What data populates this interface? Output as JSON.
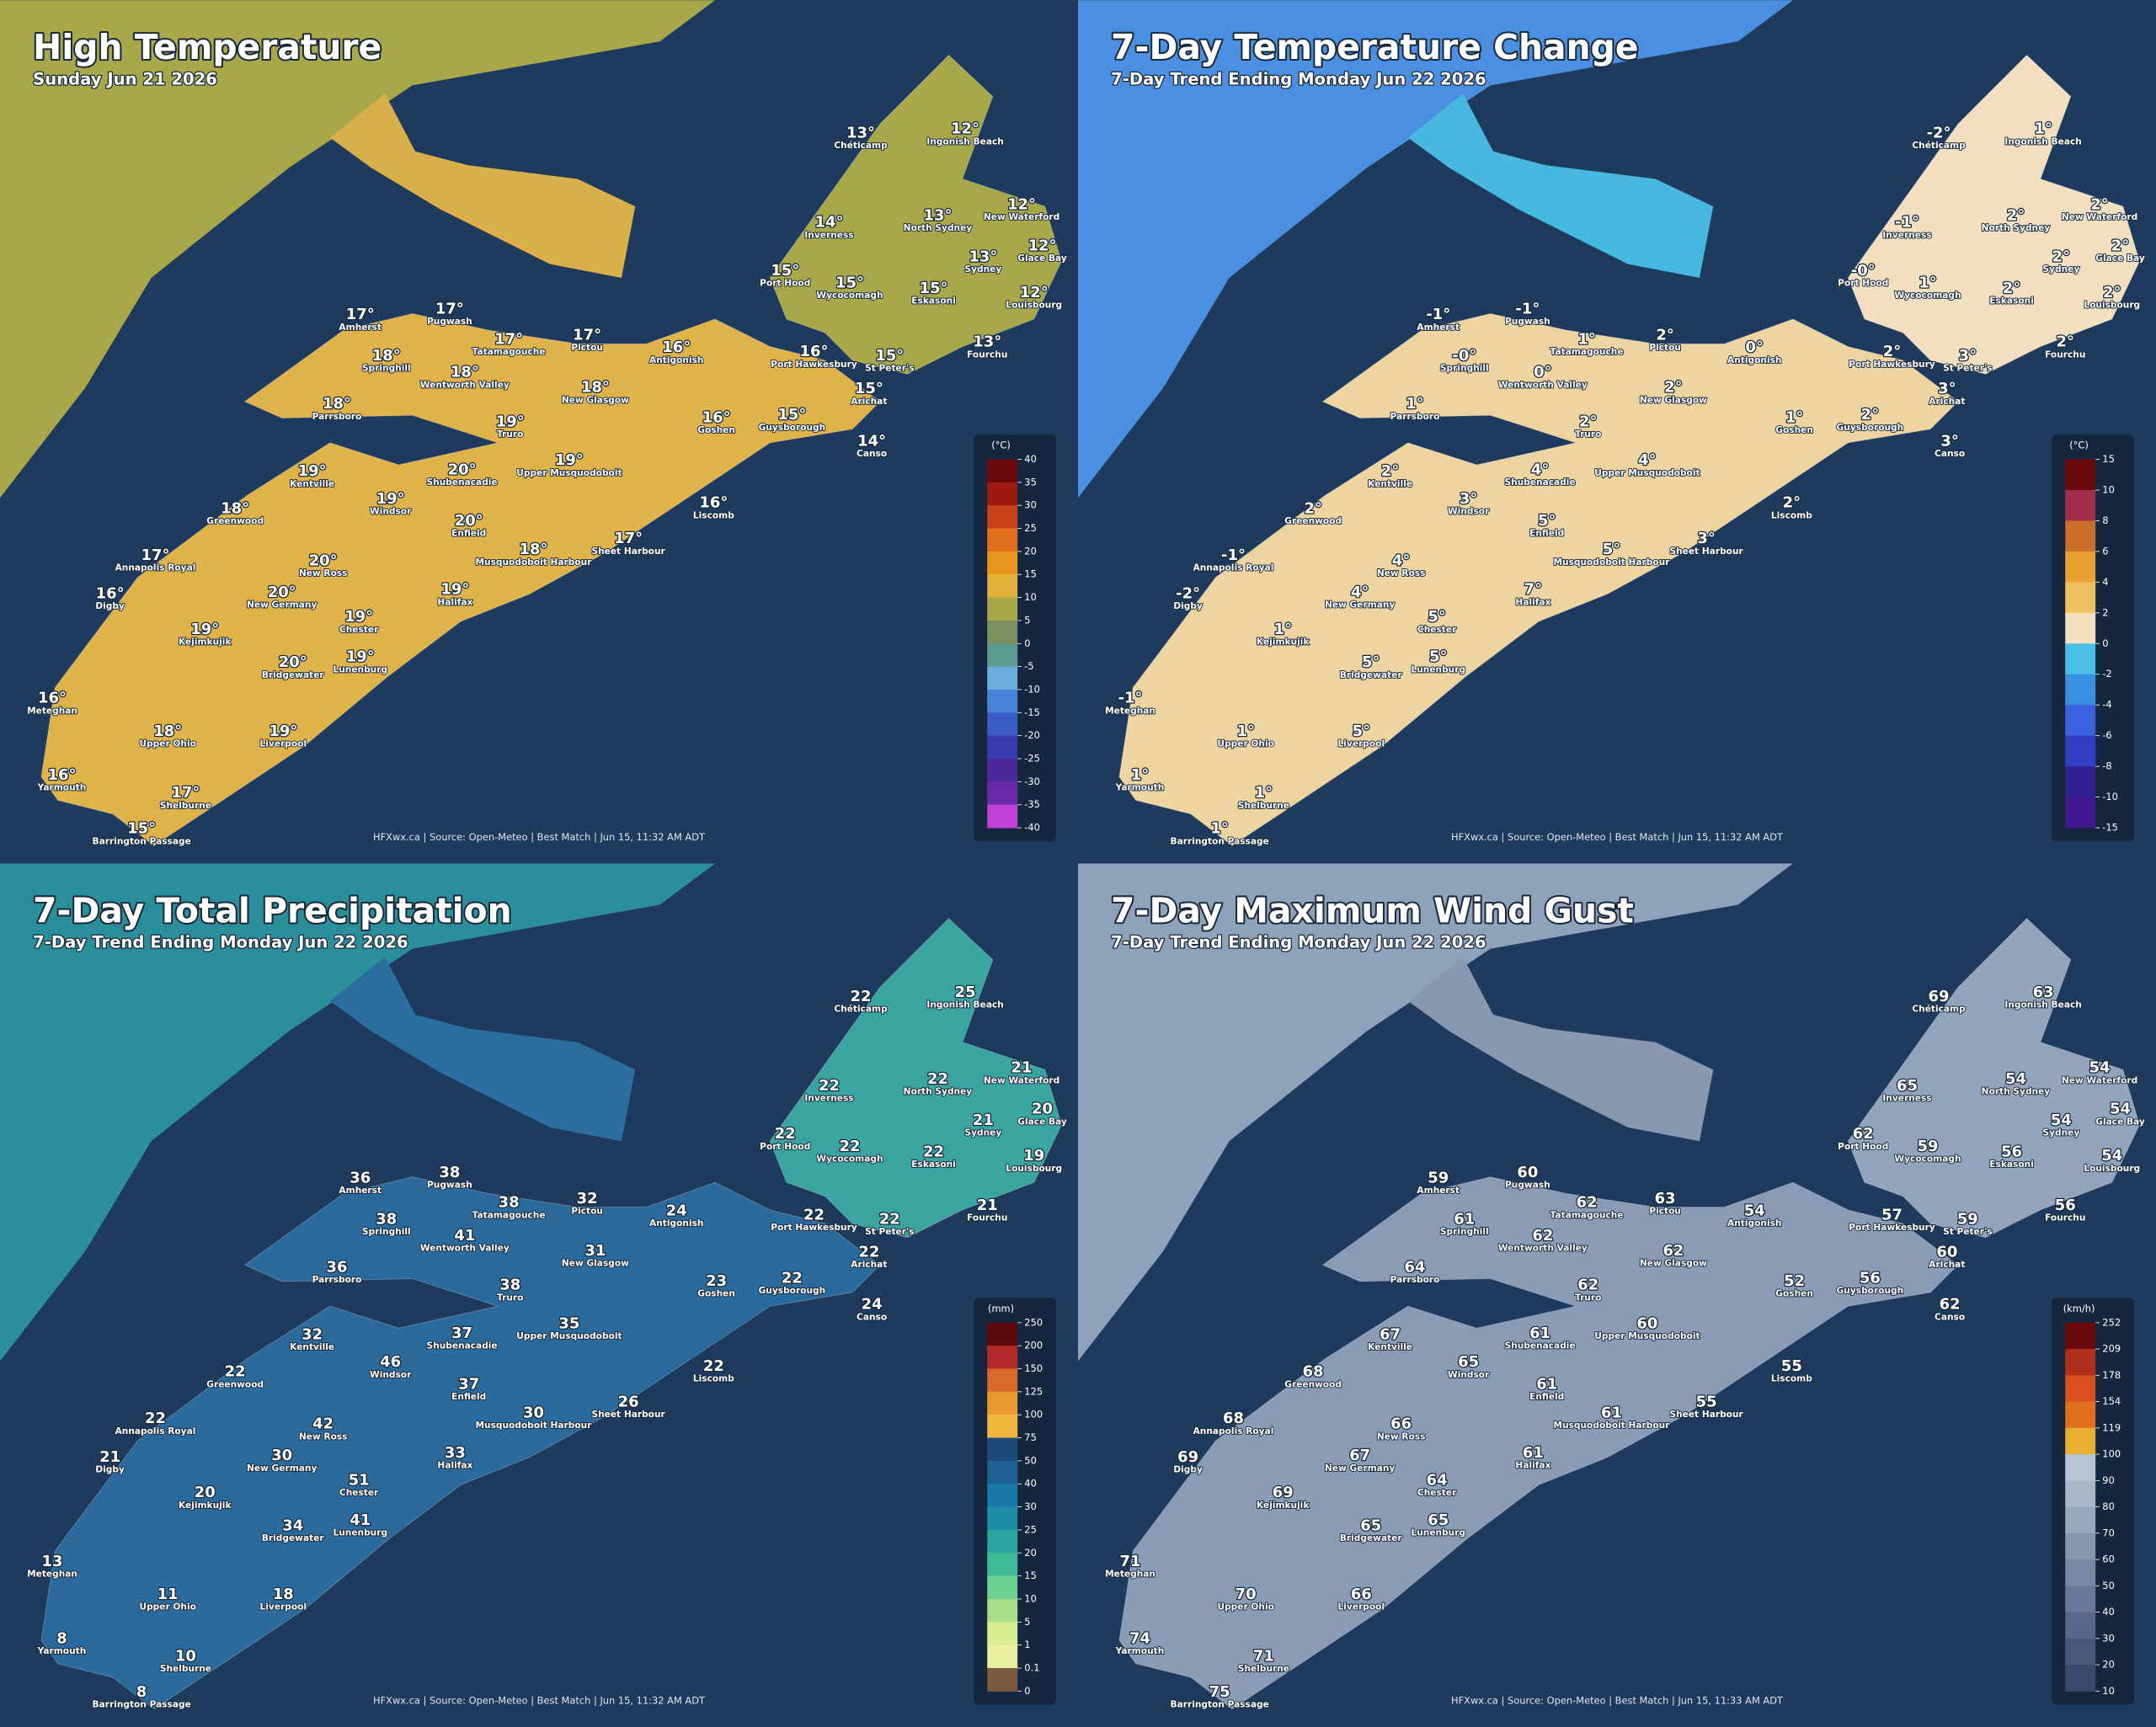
{
  "station_names": [
    "Chéticamp",
    "Ingonish Beach",
    "Inverness",
    "North Sydney",
    "New Waterford",
    "Glace Bay",
    "Sydney",
    "Port Hood",
    "Wycocomagh",
    "Eskasoni",
    "Louisbourg",
    "Amherst",
    "Pugwash",
    "Tatamagouche",
    "Pictou",
    "Antigonish",
    "Port Hawkesbury",
    "St Peter's",
    "Fourchu",
    "Springhill",
    "Wentworth Valley",
    "New Glasgow",
    "Arichat",
    "Parrsboro",
    "Goshen",
    "Guysborough",
    "Truro",
    "Canso",
    "Kentville",
    "Shubenacadie",
    "Upper Musquodoboit",
    "Windsor",
    "Liscomb",
    "Greenwood",
    "Enfield",
    "Annapolis Royal",
    "Musquodoboit Harbour",
    "Sheet Harbour",
    "New Ross",
    "Digby",
    "New Germany",
    "Halifax",
    "Chester",
    "Kejimkujik",
    "Lunenburg",
    "Bridgewater",
    "Meteghan",
    "Upper Ohio",
    "Liverpool",
    "Yarmouth",
    "Shelburne",
    "Barrington Passage"
  ],
  "panels": [
    {
      "title": "High Temperature",
      "subtitle": "Sunday Jun 21 2026",
      "legend_unit": "(°C)",
      "legend_ticks": [
        "40",
        "35",
        "30",
        "25",
        "20",
        "15",
        "10",
        "5",
        "0",
        "-5",
        "-10",
        "-15",
        "-20",
        "-25",
        "-30",
        "-35",
        "-40"
      ],
      "readings": [
        "13°",
        "12°",
        "14°",
        "13°",
        "12°",
        "12°",
        "13°",
        "15°",
        "15°",
        "15°",
        "12°",
        "17°",
        "17°",
        "17°",
        "17°",
        "16°",
        "16°",
        "15°",
        "13°",
        "18°",
        "18°",
        "18°",
        "15°",
        "18°",
        "16°",
        "15°",
        "19°",
        "14°",
        "19°",
        "20°",
        "19°",
        "19°",
        "16°",
        "18°",
        "20°",
        "17°",
        "18°",
        "17°",
        "20°",
        "16°",
        "20°",
        "19°",
        "19°",
        "19°",
        "19°",
        "20°",
        "16°",
        "18°",
        "19°",
        "16°",
        "17°",
        "15°"
      ],
      "source": "HFXwx.ca | Source: Open-Meteo | Best Match | Jun 15, 11:32 AM ADT"
    },
    {
      "title": "7-Day Temperature Change",
      "subtitle": "7-Day Trend Ending Monday Jun 22 2026",
      "legend_unit": "(°C)",
      "legend_ticks": [
        "15",
        "10",
        "8",
        "6",
        "4",
        "2",
        "0",
        "-2",
        "-4",
        "-6",
        "-8",
        "-10",
        "-15"
      ],
      "readings": [
        "-2°",
        "1°",
        "-1°",
        "2°",
        "2°",
        "2°",
        "2°",
        "-0°",
        "1°",
        "2°",
        "2°",
        "-1°",
        "-1°",
        "1°",
        "2°",
        "0°",
        "2°",
        "3°",
        "2°",
        "-0°",
        "0°",
        "2°",
        "3°",
        "1°",
        "1°",
        "2°",
        "2°",
        "3°",
        "2°",
        "4°",
        "4°",
        "3°",
        "2°",
        "2°",
        "5°",
        "-1°",
        "5°",
        "3°",
        "4°",
        "-2°",
        "4°",
        "7°",
        "5°",
        "1°",
        "5°",
        "5°",
        "-1°",
        "1°",
        "5°",
        "1°",
        "1°",
        "1°"
      ],
      "source": "HFXwx.ca | Source: Open-Meteo | Best Match | Jun 15, 11:32 AM ADT"
    },
    {
      "title": "7-Day Total Precipitation",
      "subtitle": "7-Day Trend Ending Monday Jun 22 2026",
      "legend_unit": "(mm)",
      "legend_ticks": [
        "250",
        "200",
        "150",
        "125",
        "100",
        "75",
        "50",
        "40",
        "30",
        "25",
        "20",
        "15",
        "10",
        "5",
        "1",
        "0.1",
        "0"
      ],
      "readings": [
        "22",
        "25",
        "22",
        "22",
        "21",
        "20",
        "21",
        "22",
        "22",
        "22",
        "19",
        "36",
        "38",
        "38",
        "32",
        "24",
        "22",
        "22",
        "21",
        "38",
        "41",
        "31",
        "22",
        "36",
        "23",
        "22",
        "38",
        "24",
        "32",
        "37",
        "35",
        "46",
        "22",
        "22",
        "37",
        "22",
        "30",
        "26",
        "42",
        "21",
        "30",
        "33",
        "51",
        "20",
        "41",
        "34",
        "13",
        "11",
        "18",
        "8",
        "10",
        "8"
      ],
      "source": "HFXwx.ca | Source: Open-Meteo | Best Match | Jun 15, 11:32 AM ADT"
    },
    {
      "title": "7-Day Maximum Wind Gust",
      "subtitle": "7-Day Trend Ending Monday Jun 22 2026",
      "legend_unit": "(km/h)",
      "legend_ticks": [
        "252",
        "209",
        "178",
        "154",
        "119",
        "100",
        "90",
        "80",
        "70",
        "60",
        "50",
        "40",
        "30",
        "20",
        "10"
      ],
      "readings": [
        "69",
        "63",
        "65",
        "54",
        "54",
        "54",
        "54",
        "62",
        "59",
        "56",
        "54",
        "59",
        "60",
        "62",
        "63",
        "54",
        "57",
        "59",
        "56",
        "61",
        "62",
        "62",
        "60",
        "64",
        "52",
        "56",
        "62",
        "62",
        "67",
        "61",
        "60",
        "65",
        "55",
        "68",
        "61",
        "68",
        "61",
        "55",
        "66",
        "69",
        "67",
        "61",
        "64",
        "69",
        "65",
        "65",
        "71",
        "70",
        "66",
        "74",
        "71",
        "75"
      ],
      "source": "HFXwx.ca | Source: Open-Meteo | Best Match | Jun 15, 11:33 AM ADT"
    }
  ]
}
